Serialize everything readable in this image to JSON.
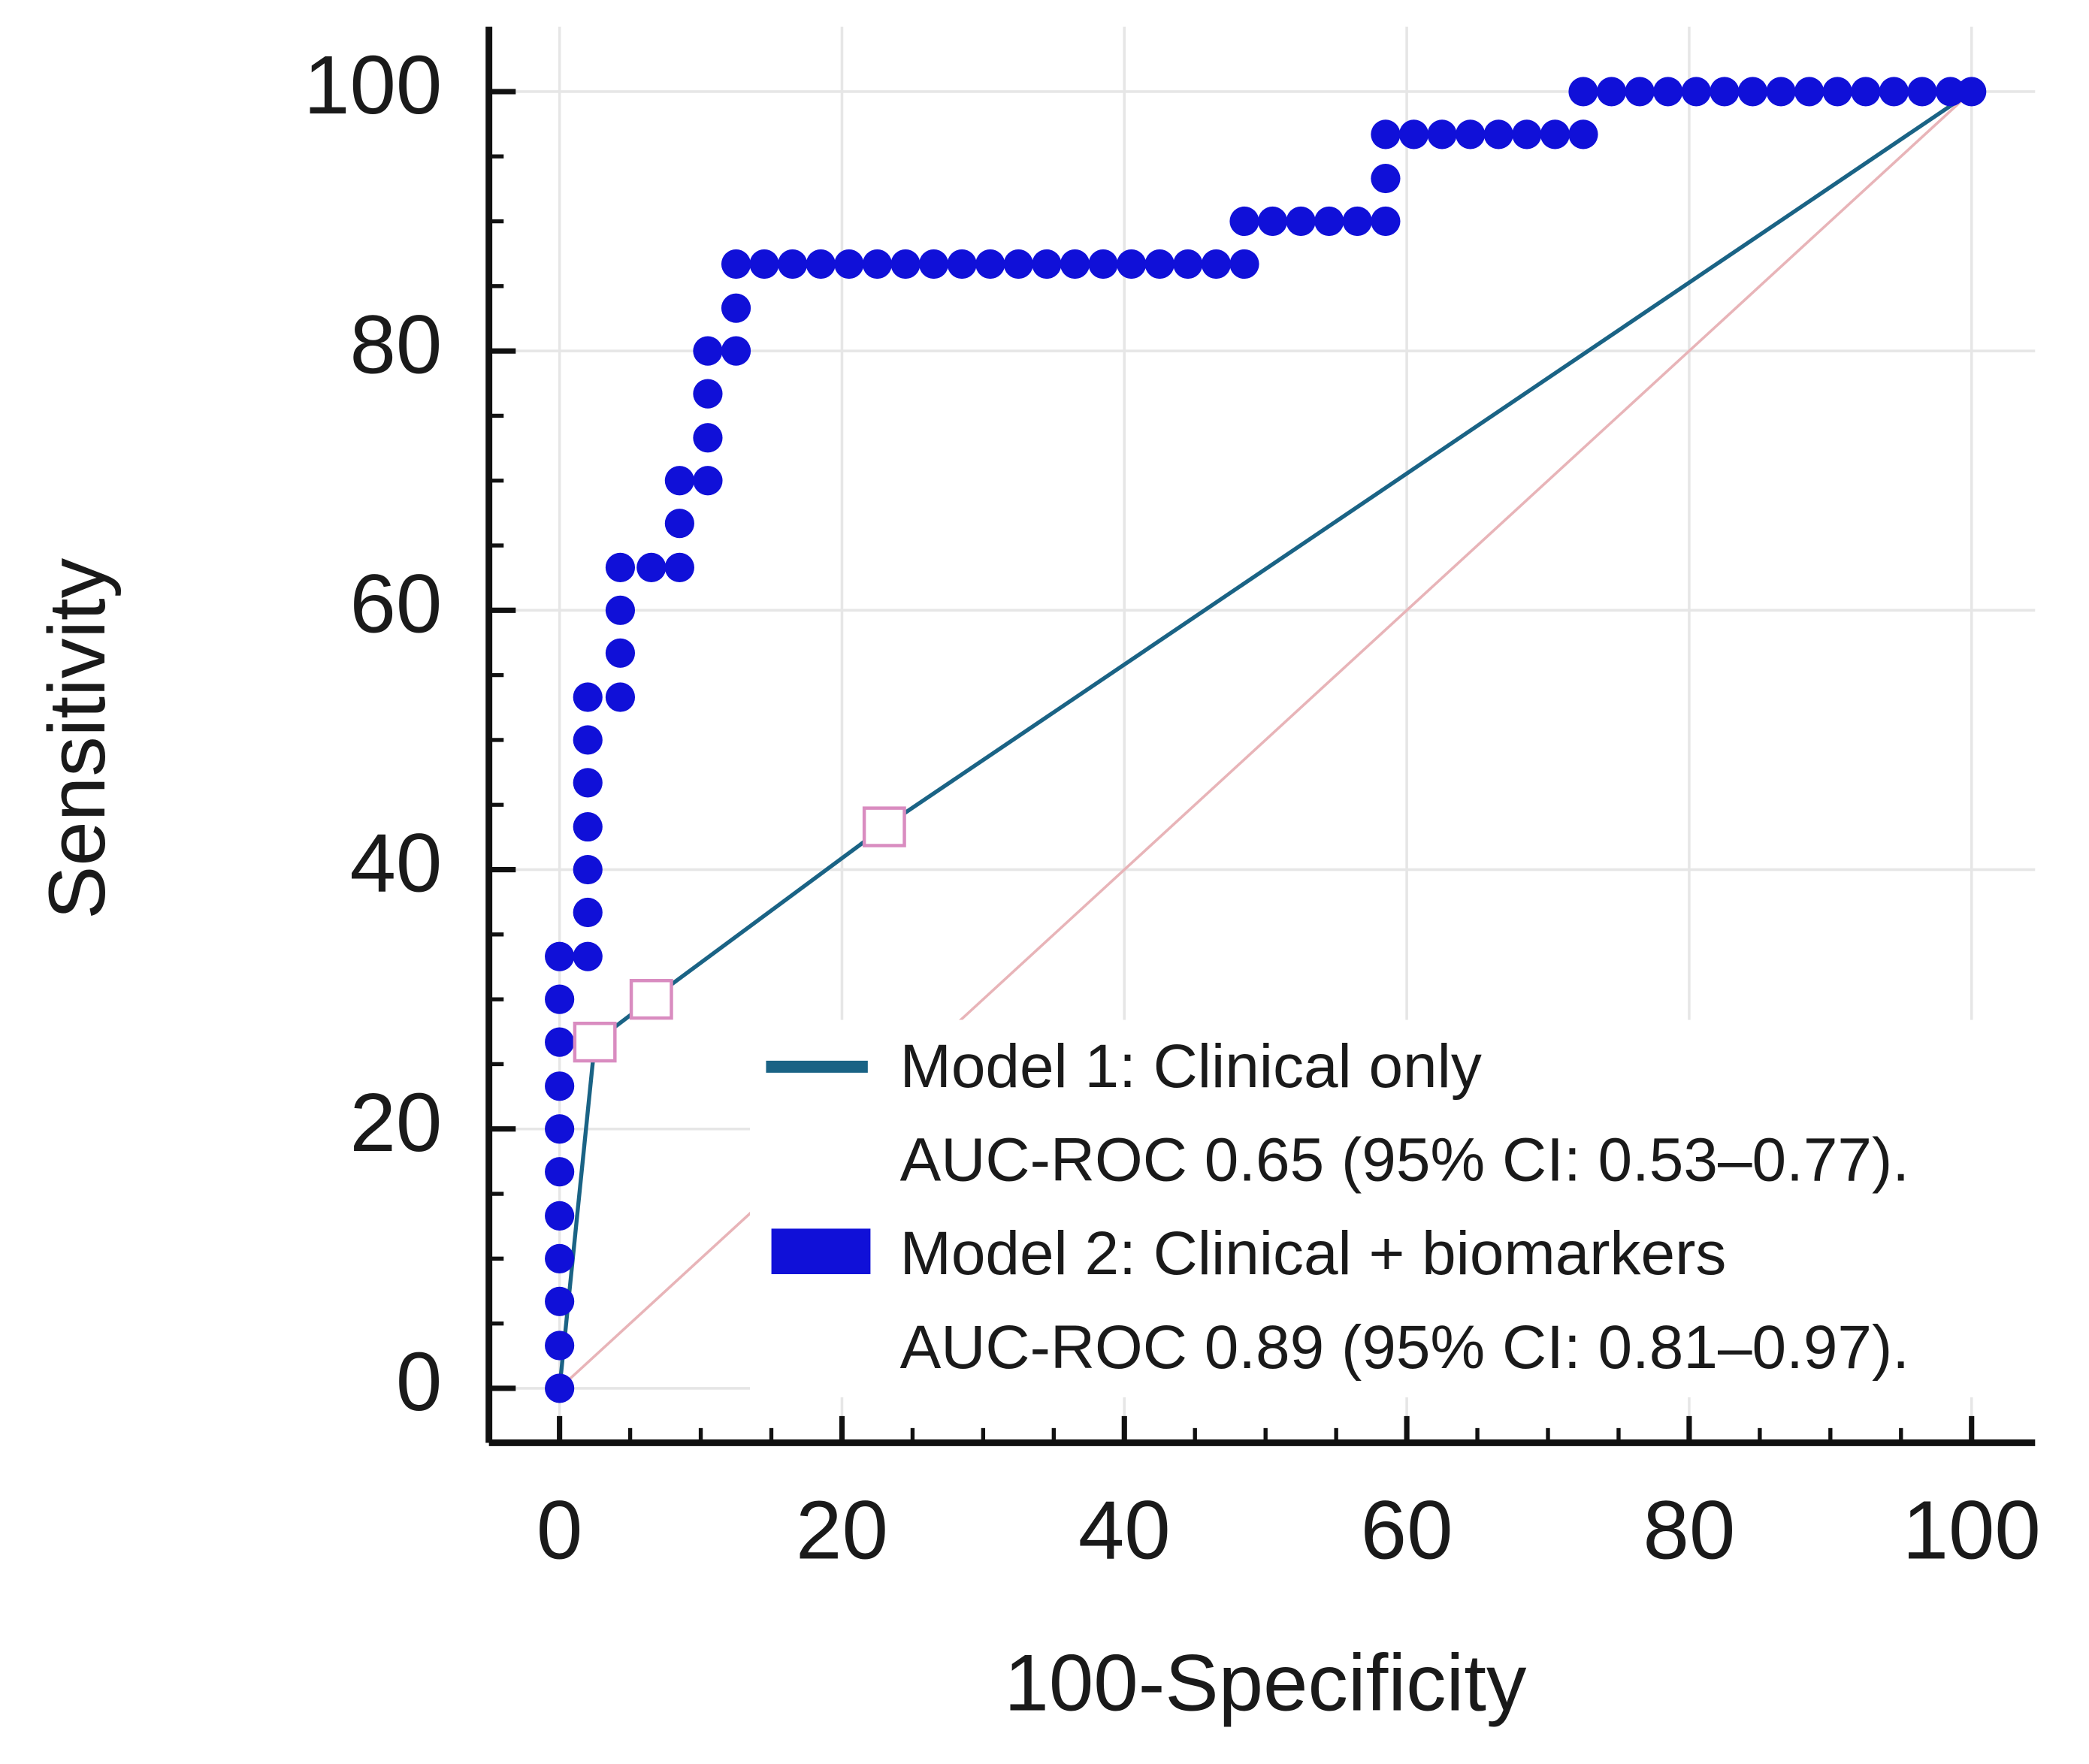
{
  "chart_data": {
    "type": "line",
    "xlabel": "100-Specificity",
    "ylabel": "Sensitivity",
    "xlim": [
      -5,
      104.5
    ],
    "ylim": [
      -4.2,
      105
    ],
    "xticks": [
      0,
      20,
      40,
      60,
      80,
      100
    ],
    "yticks": [
      0,
      20,
      40,
      60,
      80,
      100
    ],
    "grid": true,
    "minor_ticks": true,
    "legend_position": "lower right",
    "diagonal_color": "#e8b4b8",
    "series": [
      {
        "name": "Model 1: Clinical only",
        "note": "AUC-ROC 0.65 (95% CI: 0.53–0.77).",
        "color": "#1a6385",
        "marker_color": "#d98cc0",
        "x": [
          0,
          2.5,
          6.5,
          23,
          100
        ],
        "values": [
          0,
          26.7,
          30,
          43.3,
          100
        ]
      },
      {
        "name": "Model 2: Clinical +  biomarkers",
        "note": "AUC-ROC 0.89 (95% CI: 0.81–0.97).",
        "color": "#1010d8",
        "x": [
          0,
          0,
          0,
          0,
          0,
          0,
          0,
          0,
          0,
          0,
          0,
          2,
          2,
          2,
          2,
          2,
          2,
          2,
          4.3,
          4.3,
          4.3,
          4.3,
          6.5,
          8.5,
          8.5,
          8.5,
          10.5,
          10.5,
          10.5,
          10.5,
          12.5,
          12.5,
          12.5,
          14.5,
          16.5,
          18.5,
          20.5,
          22.5,
          24.5,
          26.5,
          28.5,
          30.5,
          32.5,
          34.5,
          36.5,
          38.5,
          40.5,
          42.5,
          44.5,
          46.5,
          48.5,
          48.5,
          50.5,
          52.5,
          54.5,
          56.5,
          58.5,
          58.5,
          58.5,
          60.5,
          62.5,
          64.5,
          66.5,
          68.5,
          70.5,
          72.5,
          72.5,
          74.5,
          76.5,
          78.5,
          80.5,
          82.5,
          84.5,
          86.5,
          88.5,
          90.5,
          92.5,
          94.5,
          96.5,
          98.5,
          100
        ],
        "values": [
          0,
          3.3,
          6.7,
          10,
          13.3,
          16.7,
          20,
          23.3,
          26.7,
          30,
          33.3,
          33.3,
          36.7,
          40,
          43.3,
          46.7,
          50,
          53.3,
          53.3,
          56.7,
          60,
          63.3,
          63.3,
          63.3,
          66.7,
          70,
          70,
          73.3,
          76.7,
          80,
          80,
          83.3,
          86.7,
          86.7,
          86.7,
          86.7,
          86.7,
          86.7,
          86.7,
          86.7,
          86.7,
          86.7,
          86.7,
          86.7,
          86.7,
          86.7,
          86.7,
          86.7,
          86.7,
          86.7,
          86.7,
          90,
          90,
          90,
          90,
          90,
          90,
          93.3,
          96.7,
          96.7,
          96.7,
          96.7,
          96.7,
          96.7,
          96.7,
          96.7,
          100,
          100,
          100,
          100,
          100,
          100,
          100,
          100,
          100,
          100,
          100,
          100,
          100,
          100,
          100
        ]
      }
    ]
  }
}
